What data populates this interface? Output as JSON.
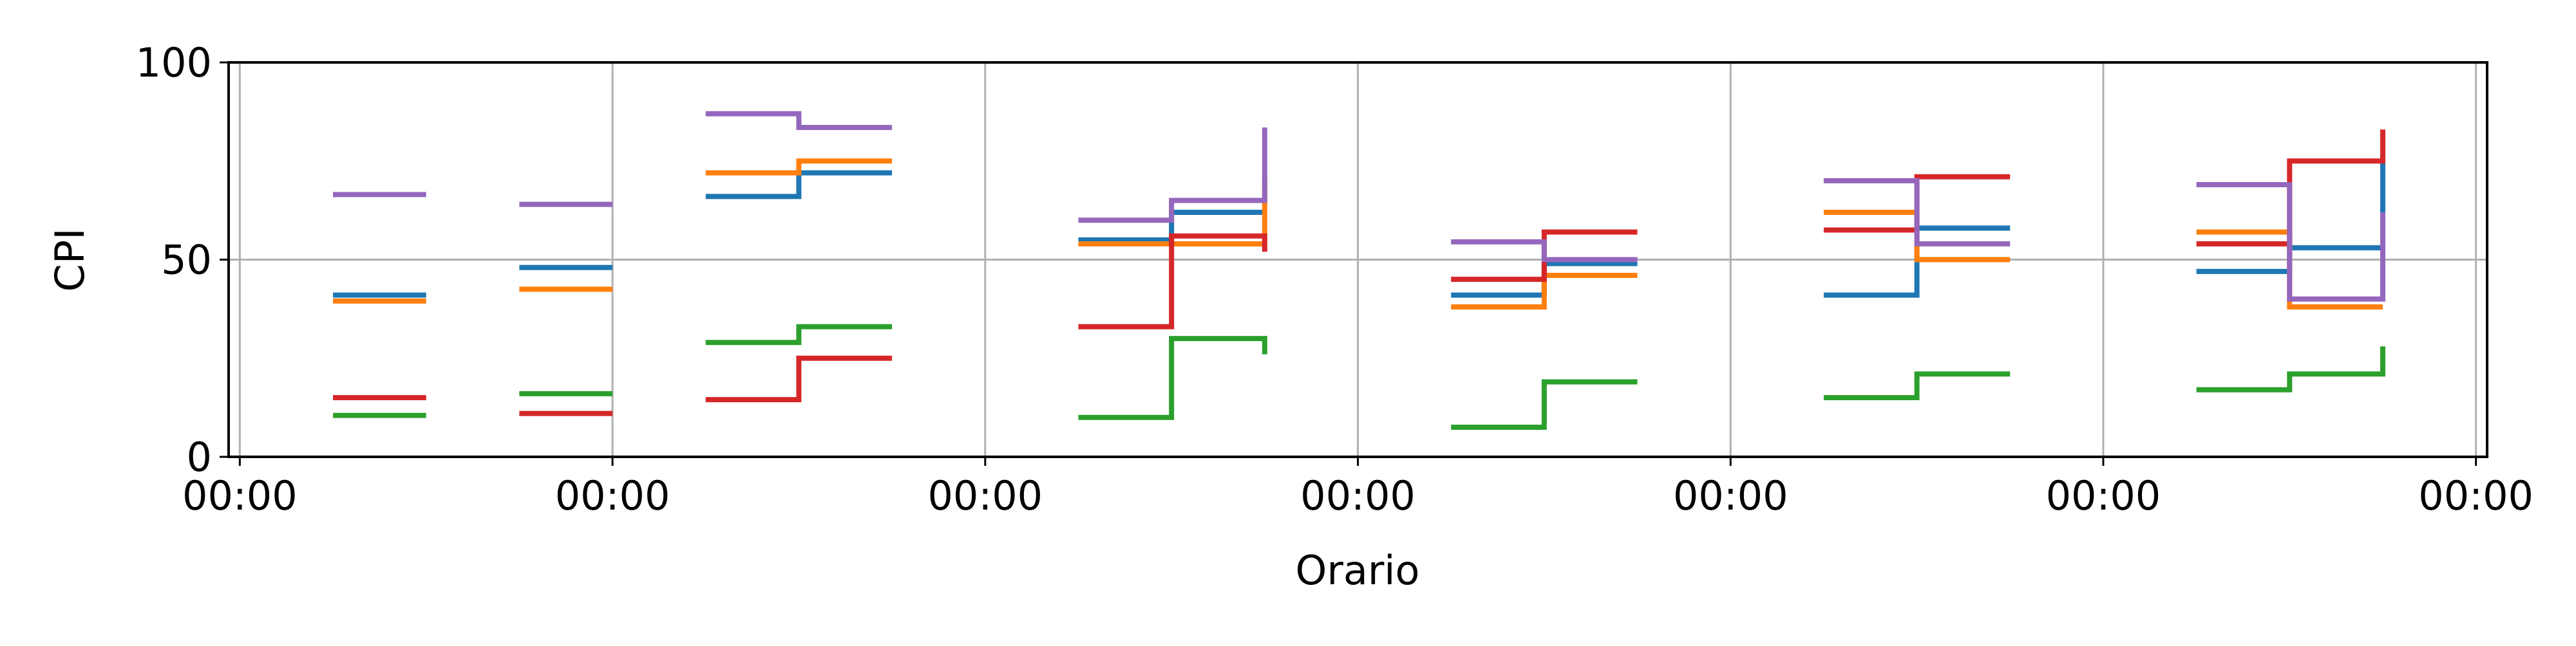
{
  "chart_data": {
    "type": "line",
    "step": "post",
    "title": "",
    "xlabel": "Orario",
    "ylabel": "CPI",
    "ylim": [
      0,
      100
    ],
    "xlim": [
      -0.03,
      6.03
    ],
    "grid": true,
    "legend": "none",
    "y_ticks": [
      {
        "value": 0,
        "label": "0"
      },
      {
        "value": 50,
        "label": "50"
      },
      {
        "value": 100,
        "label": "100"
      }
    ],
    "x_ticks": [
      {
        "value": 0,
        "label": "00:00"
      },
      {
        "value": 1,
        "label": "00:00"
      },
      {
        "value": 2,
        "label": "00:00"
      },
      {
        "value": 3,
        "label": "00:00"
      },
      {
        "value": 4,
        "label": "00:00"
      },
      {
        "value": 5,
        "label": "00:00"
      },
      {
        "value": 6,
        "label": "00:00"
      }
    ],
    "colors": [
      "#1f77b4",
      "#ff7f0e",
      "#2ca02c",
      "#d62728",
      "#9467bd"
    ],
    "series": [
      {
        "color": "#1f77b4",
        "segments": [
          {
            "x": [
              0.25,
              0.5
            ],
            "y": [
              41,
              41
            ]
          },
          {
            "x": [
              0.75,
              1.0
            ],
            "y": [
              48,
              48
            ]
          },
          {
            "x": [
              1.25,
              1.5,
              1.75
            ],
            "y": [
              66,
              72,
              72
            ]
          },
          {
            "x": [
              2.25,
              2.5,
              2.75
            ],
            "y": [
              55,
              62,
              62
            ]
          },
          {
            "x": [
              3.25,
              3.5,
              3.75
            ],
            "y": [
              41,
              49,
              49
            ]
          },
          {
            "x": [
              4.25,
              4.5,
              4.75
            ],
            "y": [
              41,
              58,
              58
            ]
          },
          {
            "x": [
              5.25,
              5.5,
              5.75
            ],
            "y": [
              47,
              53,
              82
            ]
          }
        ]
      },
      {
        "color": "#ff7f0e",
        "segments": [
          {
            "x": [
              0.25,
              0.5
            ],
            "y": [
              39.5,
              39.5
            ]
          },
          {
            "x": [
              0.75,
              1.0
            ],
            "y": [
              42.5,
              42.5
            ]
          },
          {
            "x": [
              1.25,
              1.5,
              1.75
            ],
            "y": [
              72,
              75,
              75
            ]
          },
          {
            "x": [
              2.25,
              2.5,
              2.75
            ],
            "y": [
              54,
              54,
              70
            ]
          },
          {
            "x": [
              3.25,
              3.5,
              3.75
            ],
            "y": [
              38,
              46,
              46
            ]
          },
          {
            "x": [
              4.25,
              4.5,
              4.75
            ],
            "y": [
              62,
              50,
              50
            ]
          },
          {
            "x": [
              5.25,
              5.5,
              5.75
            ],
            "y": [
              57,
              38,
              38
            ]
          }
        ]
      },
      {
        "color": "#2ca02c",
        "segments": [
          {
            "x": [
              0.25,
              0.5
            ],
            "y": [
              10.5,
              10.5
            ]
          },
          {
            "x": [
              0.75,
              1.0
            ],
            "y": [
              16,
              16
            ]
          },
          {
            "x": [
              1.25,
              1.5,
              1.75
            ],
            "y": [
              29,
              33,
              33
            ]
          },
          {
            "x": [
              2.25,
              2.5,
              2.75
            ],
            "y": [
              10,
              30,
              26
            ]
          },
          {
            "x": [
              3.25,
              3.5,
              3.75
            ],
            "y": [
              7.5,
              19,
              19
            ]
          },
          {
            "x": [
              4.25,
              4.5,
              4.75
            ],
            "y": [
              15,
              21,
              21
            ]
          },
          {
            "x": [
              5.25,
              5.5,
              5.75
            ],
            "y": [
              17,
              21,
              28
            ]
          }
        ]
      },
      {
        "color": "#d62728",
        "segments": [
          {
            "x": [
              0.25,
              0.5
            ],
            "y": [
              15,
              15
            ]
          },
          {
            "x": [
              0.75,
              1.0
            ],
            "y": [
              11,
              11
            ]
          },
          {
            "x": [
              1.25,
              1.5,
              1.75
            ],
            "y": [
              14.5,
              25,
              25
            ]
          },
          {
            "x": [
              2.25,
              2.5,
              2.75
            ],
            "y": [
              33,
              56,
              52
            ]
          },
          {
            "x": [
              3.25,
              3.5,
              3.75
            ],
            "y": [
              45,
              57,
              57
            ]
          },
          {
            "x": [
              4.25,
              4.5,
              4.75
            ],
            "y": [
              57.5,
              71,
              71
            ]
          },
          {
            "x": [
              5.25,
              5.5,
              5.75
            ],
            "y": [
              54,
              75,
              83
            ]
          }
        ]
      },
      {
        "color": "#9467bd",
        "segments": [
          {
            "x": [
              0.25,
              0.5
            ],
            "y": [
              66.5,
              66.5
            ]
          },
          {
            "x": [
              0.75,
              1.0
            ],
            "y": [
              64,
              64
            ]
          },
          {
            "x": [
              1.25,
              1.5,
              1.75
            ],
            "y": [
              87,
              83.5,
              83.5
            ]
          },
          {
            "x": [
              2.25,
              2.5,
              2.75
            ],
            "y": [
              60,
              65,
              83.5
            ]
          },
          {
            "x": [
              3.25,
              3.5,
              3.75
            ],
            "y": [
              54.5,
              50,
              50
            ]
          },
          {
            "x": [
              4.25,
              4.5,
              4.75
            ],
            "y": [
              70,
              54,
              54
            ]
          },
          {
            "x": [
              5.25,
              5.5,
              5.75
            ],
            "y": [
              69,
              40,
              62
            ]
          }
        ]
      }
    ]
  }
}
